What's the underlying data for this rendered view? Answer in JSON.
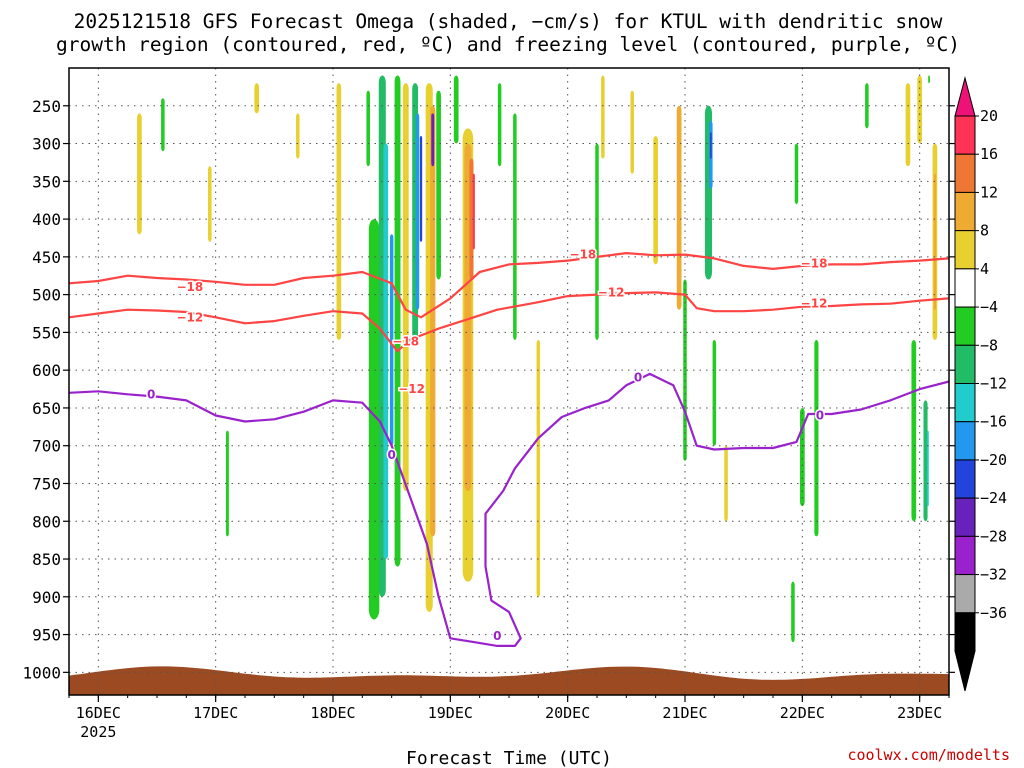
{
  "chart_data": {
    "type": "heatmap",
    "title_line1": "2025121518 GFS Forecast Omega (shaded, −cm/s) for KTUL with dendritic snow",
    "title_line2": "growth region (contoured, red, ºC) and freezing level (contoured, purple, ºC)",
    "xlabel": "Forecast Time (UTC)",
    "ylabel": "",
    "credit": "coolwx.com/modelts",
    "x_ticks": [
      {
        "label": "16DEC",
        "sub": "2025",
        "day": 0
      },
      {
        "label": "17DEC",
        "sub": "",
        "day": 1
      },
      {
        "label": "18DEC",
        "sub": "",
        "day": 2
      },
      {
        "label": "19DEC",
        "sub": "",
        "day": 3
      },
      {
        "label": "20DEC",
        "sub": "",
        "day": 4
      },
      {
        "label": "21DEC",
        "sub": "",
        "day": 5
      },
      {
        "label": "22DEC",
        "sub": "",
        "day": 6
      },
      {
        "label": "23DEC",
        "sub": "",
        "day": 7
      }
    ],
    "x_range_days": [
      -0.25,
      7.25
    ],
    "y_ticks": [
      {
        "label": "250",
        "p": 250
      },
      {
        "label": "300",
        "p": 300
      },
      {
        "label": "350",
        "p": 350
      },
      {
        "label": "400",
        "p": 400
      },
      {
        "label": "450",
        "p": 450
      },
      {
        "label": "500",
        "p": 500
      },
      {
        "label": "550",
        "p": 550
      },
      {
        "label": "600",
        "p": 600
      },
      {
        "label": "650",
        "p": 650
      },
      {
        "label": "700",
        "p": 700
      },
      {
        "label": "750",
        "p": 750
      },
      {
        "label": "800",
        "p": 800
      },
      {
        "label": "850",
        "p": 850
      },
      {
        "label": "900",
        "p": 900
      },
      {
        "label": "950",
        "p": 950
      },
      {
        "label": "1000",
        "p": 1000
      }
    ],
    "y_range_hpa": [
      200,
      1030
    ],
    "colorbar": {
      "labels": [
        "20",
        "16",
        "12",
        "8",
        "4",
        "−4",
        "−8",
        "−12",
        "−16",
        "−20",
        "−24",
        "−28",
        "−32",
        "−36"
      ],
      "colors": [
        "#ff3355",
        "#ee7733",
        "#eeaa33",
        "#e8d030",
        "#ffffff",
        "#22cc22",
        "#22bb66",
        "#22cccc",
        "#2299ee",
        "#2244dd",
        "#6622bb",
        "#9922cc",
        "#aaaaaa",
        "#000000"
      ],
      "top_arrow_color": "#ee1177",
      "bottom_arrow_color": "#000000"
    },
    "contours": [
      {
        "name": "minus-18-line",
        "label": "−18",
        "color": "#ff4444",
        "points": [
          [
            -0.25,
            485
          ],
          [
            0.0,
            482
          ],
          [
            0.25,
            475
          ],
          [
            0.5,
            478
          ],
          [
            0.75,
            480
          ],
          [
            1.0,
            483
          ],
          [
            1.25,
            487
          ],
          [
            1.5,
            487
          ],
          [
            1.75,
            478
          ],
          [
            2.0,
            475
          ],
          [
            2.25,
            470
          ],
          [
            2.5,
            485
          ],
          [
            2.62,
            520
          ],
          [
            2.75,
            530
          ],
          [
            3.0,
            505
          ],
          [
            3.25,
            470
          ],
          [
            3.5,
            460
          ],
          [
            3.75,
            458
          ],
          [
            4.0,
            455
          ],
          [
            4.25,
            450
          ],
          [
            4.5,
            445
          ],
          [
            4.75,
            448
          ],
          [
            5.0,
            447
          ],
          [
            5.25,
            452
          ],
          [
            5.5,
            462
          ],
          [
            5.75,
            466
          ],
          [
            6.0,
            462
          ],
          [
            6.25,
            460
          ],
          [
            6.5,
            460
          ],
          [
            6.75,
            457
          ],
          [
            7.0,
            455
          ],
          [
            7.25,
            452
          ]
        ]
      },
      {
        "name": "minus-12-line",
        "label": "−12",
        "color": "#ff4444",
        "points": [
          [
            -0.25,
            530
          ],
          [
            0.0,
            525
          ],
          [
            0.25,
            520
          ],
          [
            0.5,
            521
          ],
          [
            0.75,
            523
          ],
          [
            1.0,
            530
          ],
          [
            1.25,
            538
          ],
          [
            1.5,
            535
          ],
          [
            1.75,
            528
          ],
          [
            2.0,
            522
          ],
          [
            2.25,
            525
          ],
          [
            2.4,
            545
          ],
          [
            2.55,
            575
          ],
          [
            2.65,
            560
          ],
          [
            2.9,
            545
          ],
          [
            3.1,
            535
          ],
          [
            3.4,
            520
          ],
          [
            3.75,
            510
          ],
          [
            4.0,
            502
          ],
          [
            4.25,
            500
          ],
          [
            4.5,
            498
          ],
          [
            4.75,
            497
          ],
          [
            5.0,
            500
          ],
          [
            5.1,
            518
          ],
          [
            5.25,
            522
          ],
          [
            5.5,
            522
          ],
          [
            5.75,
            520
          ],
          [
            6.0,
            516
          ],
          [
            6.25,
            515
          ],
          [
            6.5,
            513
          ],
          [
            6.75,
            512
          ],
          [
            7.0,
            508
          ],
          [
            7.25,
            505
          ]
        ]
      },
      {
        "name": "zero-line",
        "label": "0",
        "color": "#9922cc",
        "points": [
          [
            -0.25,
            630
          ],
          [
            0.0,
            628
          ],
          [
            0.25,
            632
          ],
          [
            0.5,
            635
          ],
          [
            0.75,
            640
          ],
          [
            1.0,
            660
          ],
          [
            1.25,
            668
          ],
          [
            1.5,
            665
          ],
          [
            1.75,
            655
          ],
          [
            2.0,
            640
          ],
          [
            2.25,
            643
          ],
          [
            2.4,
            668
          ],
          [
            2.5,
            700
          ],
          [
            2.65,
            765
          ],
          [
            2.8,
            830
          ],
          [
            2.9,
            900
          ],
          [
            3.0,
            955
          ],
          [
            3.2,
            960
          ],
          [
            3.4,
            965
          ],
          [
            3.55,
            965
          ],
          [
            3.6,
            955
          ],
          [
            3.5,
            920
          ],
          [
            3.35,
            905
          ],
          [
            3.3,
            860
          ],
          [
            3.3,
            790
          ],
          [
            3.45,
            760
          ],
          [
            3.55,
            730
          ],
          [
            3.75,
            690
          ],
          [
            3.95,
            662
          ],
          [
            4.15,
            650
          ],
          [
            4.35,
            640
          ],
          [
            4.5,
            620
          ],
          [
            4.7,
            605
          ],
          [
            4.9,
            620
          ],
          [
            5.0,
            655
          ],
          [
            5.1,
            700
          ],
          [
            5.25,
            705
          ],
          [
            5.5,
            703
          ],
          [
            5.75,
            703
          ],
          [
            5.95,
            695
          ],
          [
            6.05,
            658
          ],
          [
            6.25,
            658
          ],
          [
            6.5,
            652
          ],
          [
            6.75,
            640
          ],
          [
            7.0,
            625
          ],
          [
            7.25,
            615
          ]
        ]
      }
    ],
    "contour_labels": [
      {
        "text": "−18",
        "day": 0.78,
        "p": 490,
        "color": "#ff4444"
      },
      {
        "text": "−12",
        "day": 0.78,
        "p": 530,
        "color": "#ff4444"
      },
      {
        "text": "−18",
        "day": 2.62,
        "p": 562,
        "color": "#ff4444"
      },
      {
        "text": "−12",
        "day": 2.67,
        "p": 625,
        "color": "#ff4444"
      },
      {
        "text": "−18",
        "day": 4.13,
        "p": 447,
        "color": "#ff4444"
      },
      {
        "text": "−12",
        "day": 4.37,
        "p": 497,
        "color": "#ff4444"
      },
      {
        "text": "−18",
        "day": 6.1,
        "p": 459,
        "color": "#ff4444"
      },
      {
        "text": "−12",
        "day": 6.1,
        "p": 512,
        "color": "#ff4444"
      },
      {
        "text": "0",
        "day": 0.45,
        "p": 632,
        "color": "#9922cc"
      },
      {
        "text": "0",
        "day": 2.5,
        "p": 712,
        "color": "#9922cc"
      },
      {
        "text": "0",
        "day": 3.4,
        "p": 952,
        "color": "#9922cc"
      },
      {
        "text": "0",
        "day": 4.6,
        "p": 610,
        "color": "#9922cc"
      },
      {
        "text": "0",
        "day": 6.15,
        "p": 660,
        "color": "#9922cc"
      }
    ],
    "omega_blobs": [
      {
        "day": 0.35,
        "p1": 260,
        "p2": 420,
        "w": 0.04,
        "c": "#e8d030"
      },
      {
        "day": 0.55,
        "p1": 240,
        "p2": 310,
        "w": 0.03,
        "c": "#22cc22"
      },
      {
        "day": 0.95,
        "p1": 330,
        "p2": 430,
        "w": 0.03,
        "c": "#e8d030"
      },
      {
        "day": 1.35,
        "p1": 220,
        "p2": 260,
        "w": 0.04,
        "c": "#e8d030"
      },
      {
        "day": 1.1,
        "p1": 680,
        "p2": 820,
        "w": 0.025,
        "c": "#22cc22"
      },
      {
        "day": 1.7,
        "p1": 260,
        "p2": 320,
        "w": 0.03,
        "c": "#e8d030"
      },
      {
        "day": 2.05,
        "p1": 220,
        "p2": 560,
        "w": 0.04,
        "c": "#e8d030"
      },
      {
        "day": 2.3,
        "p1": 230,
        "p2": 330,
        "w": 0.03,
        "c": "#22cc22"
      },
      {
        "day": 2.35,
        "p1": 400,
        "p2": 930,
        "w": 0.09,
        "c": "#22cc22"
      },
      {
        "day": 2.42,
        "p1": 210,
        "p2": 900,
        "w": 0.06,
        "c": "#22bb66"
      },
      {
        "day": 2.45,
        "p1": 300,
        "p2": 850,
        "w": 0.04,
        "c": "#22cccc"
      },
      {
        "day": 2.5,
        "p1": 420,
        "p2": 700,
        "w": 0.03,
        "c": "#2299ee"
      },
      {
        "day": 2.55,
        "p1": 210,
        "p2": 860,
        "w": 0.05,
        "c": "#22cc22"
      },
      {
        "day": 2.62,
        "p1": 220,
        "p2": 760,
        "w": 0.05,
        "c": "#e8d030"
      },
      {
        "day": 2.7,
        "p1": 220,
        "p2": 560,
        "w": 0.05,
        "c": "#22bb66"
      },
      {
        "day": 2.72,
        "p1": 260,
        "p2": 520,
        "w": 0.03,
        "c": "#2299ee"
      },
      {
        "day": 2.75,
        "p1": 290,
        "p2": 430,
        "w": 0.02,
        "c": "#2244dd"
      },
      {
        "day": 2.82,
        "p1": 220,
        "p2": 920,
        "w": 0.06,
        "c": "#e8d030"
      },
      {
        "day": 2.85,
        "p1": 250,
        "p2": 820,
        "w": 0.045,
        "c": "#eeaa33"
      },
      {
        "day": 2.85,
        "p1": 260,
        "p2": 330,
        "w": 0.025,
        "c": "#6622bb"
      },
      {
        "day": 2.9,
        "p1": 230,
        "p2": 480,
        "w": 0.04,
        "c": "#22cc22"
      },
      {
        "day": 3.05,
        "p1": 210,
        "p2": 300,
        "w": 0.04,
        "c": "#22cc22"
      },
      {
        "day": 3.15,
        "p1": 280,
        "p2": 880,
        "w": 0.09,
        "c": "#e8d030"
      },
      {
        "day": 3.15,
        "p1": 300,
        "p2": 760,
        "w": 0.06,
        "c": "#eeaa33"
      },
      {
        "day": 3.18,
        "p1": 320,
        "p2": 480,
        "w": 0.035,
        "c": "#ee7733"
      },
      {
        "day": 3.2,
        "p1": 340,
        "p2": 440,
        "w": 0.018,
        "c": "#ff3355"
      },
      {
        "day": 3.42,
        "p1": 220,
        "p2": 330,
        "w": 0.03,
        "c": "#22cc22"
      },
      {
        "day": 3.55,
        "p1": 260,
        "p2": 560,
        "w": 0.03,
        "c": "#22cc22"
      },
      {
        "day": 3.75,
        "p1": 560,
        "p2": 900,
        "w": 0.03,
        "c": "#e8d030"
      },
      {
        "day": 4.25,
        "p1": 300,
        "p2": 560,
        "w": 0.03,
        "c": "#22cc22"
      },
      {
        "day": 4.3,
        "p1": 210,
        "p2": 320,
        "w": 0.03,
        "c": "#e8d030"
      },
      {
        "day": 4.55,
        "p1": 230,
        "p2": 340,
        "w": 0.03,
        "c": "#e8d030"
      },
      {
        "day": 4.75,
        "p1": 290,
        "p2": 460,
        "w": 0.04,
        "c": "#e8d030"
      },
      {
        "day": 4.95,
        "p1": 250,
        "p2": 520,
        "w": 0.04,
        "c": "#eeaa33"
      },
      {
        "day": 5.0,
        "p1": 480,
        "p2": 720,
        "w": 0.03,
        "c": "#22cc22"
      },
      {
        "day": 5.2,
        "p1": 250,
        "p2": 480,
        "w": 0.06,
        "c": "#22bb66"
      },
      {
        "day": 5.22,
        "p1": 270,
        "p2": 360,
        "w": 0.03,
        "c": "#2299ee"
      },
      {
        "day": 5.22,
        "p1": 285,
        "p2": 320,
        "w": 0.015,
        "c": "#2244dd"
      },
      {
        "day": 5.25,
        "p1": 560,
        "p2": 700,
        "w": 0.03,
        "c": "#22cc22"
      },
      {
        "day": 5.35,
        "p1": 700,
        "p2": 800,
        "w": 0.03,
        "c": "#e8d030"
      },
      {
        "day": 5.95,
        "p1": 300,
        "p2": 380,
        "w": 0.03,
        "c": "#22cc22"
      },
      {
        "day": 6.0,
        "p1": 650,
        "p2": 780,
        "w": 0.04,
        "c": "#22cc22"
      },
      {
        "day": 6.12,
        "p1": 560,
        "p2": 820,
        "w": 0.035,
        "c": "#22cc22"
      },
      {
        "day": 5.92,
        "p1": 880,
        "p2": 960,
        "w": 0.03,
        "c": "#22cc22"
      },
      {
        "day": 6.55,
        "p1": 220,
        "p2": 280,
        "w": 0.03,
        "c": "#22cc22"
      },
      {
        "day": 6.9,
        "p1": 220,
        "p2": 330,
        "w": 0.04,
        "c": "#e8d030"
      },
      {
        "day": 7.0,
        "p1": 210,
        "p2": 300,
        "w": 0.04,
        "c": "#e8d030"
      },
      {
        "day": 6.95,
        "p1": 560,
        "p2": 800,
        "w": 0.04,
        "c": "#22cc22"
      },
      {
        "day": 7.05,
        "p1": 640,
        "p2": 800,
        "w": 0.035,
        "c": "#22bb66"
      },
      {
        "day": 7.07,
        "p1": 680,
        "p2": 780,
        "w": 0.015,
        "c": "#22cccc"
      },
      {
        "day": 7.13,
        "p1": 300,
        "p2": 560,
        "w": 0.04,
        "c": "#e8d030"
      },
      {
        "day": 7.13,
        "p1": 340,
        "p2": 520,
        "w": 0.02,
        "c": "#eeaa33"
      },
      {
        "day": 7.08,
        "p1": 210,
        "p2": 220,
        "w": 0.015,
        "c": "#22cc22"
      }
    ]
  }
}
